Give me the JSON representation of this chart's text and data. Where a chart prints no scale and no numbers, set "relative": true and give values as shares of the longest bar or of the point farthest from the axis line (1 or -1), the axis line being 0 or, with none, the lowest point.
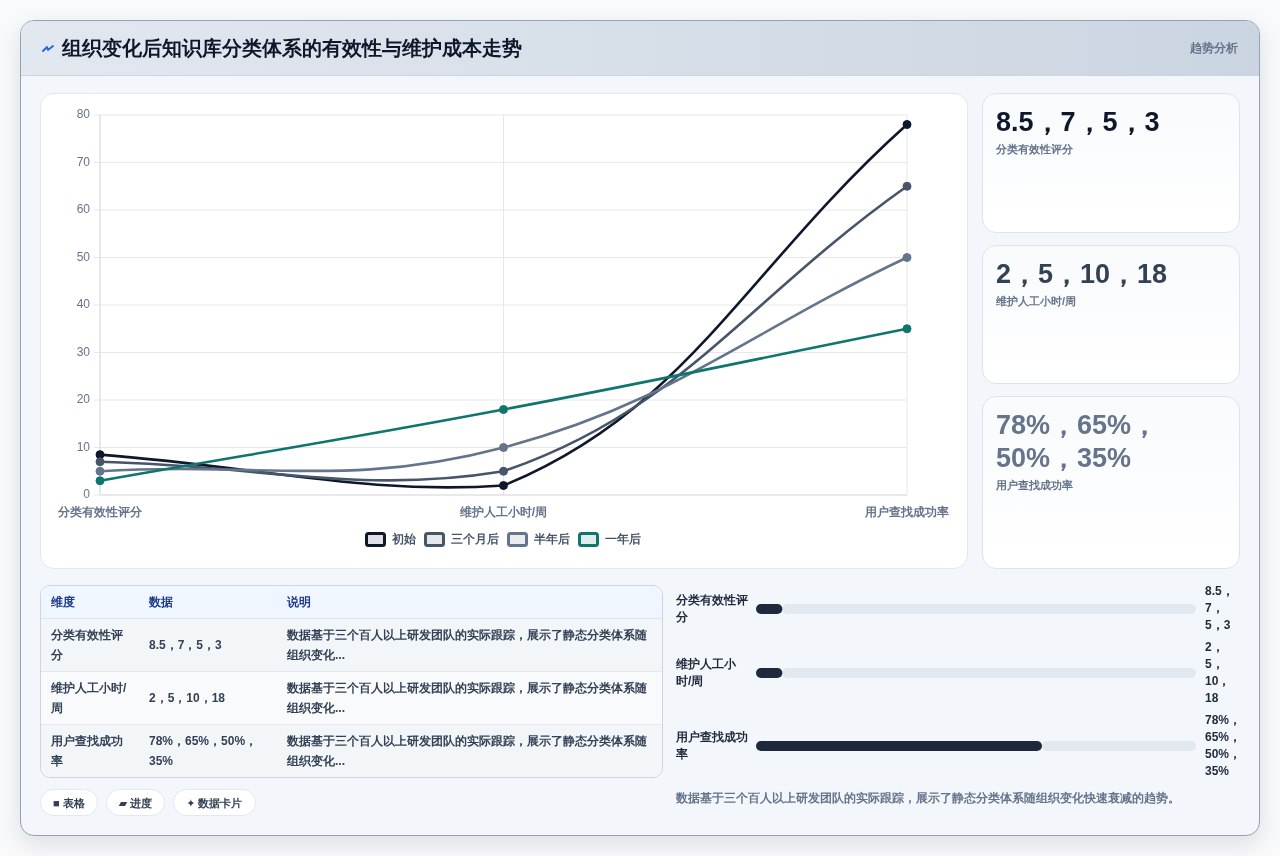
{
  "chart_data": [
    {
      "type": "other",
      "title": "组织变化后知识库分类体系的有效性与维护成本走势",
      "subtitle": "趋势分析"
    },
    {
      "type": "line",
      "categories": [
        "分类有效性评分",
        "维护人工小时/周",
        "用户查找成功率"
      ],
      "series": [
        {
          "name": "初始",
          "color": "#0f172a",
          "values": [
            8.5,
            2,
            78
          ]
        },
        {
          "name": "三个月后",
          "color": "#475569",
          "values": [
            7,
            5,
            65
          ]
        },
        {
          "name": "半年后",
          "color": "#64748b",
          "values": [
            5,
            10,
            50
          ]
        },
        {
          "name": "一年后",
          "color": "#0f766e",
          "values": [
            3,
            18,
            35
          ]
        }
      ],
      "ylim": [
        0,
        80
      ],
      "yticks": [
        0,
        10,
        20,
        30,
        40,
        50,
        60,
        70,
        80
      ],
      "grid": true,
      "legend": "bottom",
      "marker": "circle",
      "line_style": "solid"
    },
    {
      "type": "other",
      "categories": [
        "分类有效性评分",
        "维护人工小时/周",
        "用户查找成功率"
      ],
      "value_labels": [
        "8.5，7，5，3",
        "2，5，10，18",
        "78%，65%，50%，35%"
      ]
    },
    {
      "type": "other",
      "categories": [
        "维度",
        "数据",
        "说明"
      ],
      "cell_labels": [
        [
          "分类有效性评分",
          "8.5，7，5，3",
          "数据基于三个百人以上研发团队的实际跟踪，展示了静态分类体系随组织变化..."
        ],
        [
          "维护人工小时/周",
          "2，5，10，18",
          "数据基于三个百人以上研发团队的实际跟踪，展示了静态分类体系随组织变化..."
        ],
        [
          "用户查找成功率",
          "78%，65%，50%，35%",
          "数据基于三个百人以上研发团队的实际跟踪，展示了静态分类体系随组织变化..."
        ]
      ],
      "annotations": [
        "■ 表格",
        "▰ 进度",
        "✦ 数据卡片"
      ]
    },
    {
      "type": "bar",
      "orientation": "horizontal",
      "stacked": true,
      "relative": true,
      "categories": [
        "分类有效性评分",
        "维护人工小时/周",
        "用户查找成功率"
      ],
      "series": [
        {
          "color": "#1e293b",
          "values": [
            0.06,
            0.06,
            0.65
          ]
        },
        {
          "color": "#e2e8f0",
          "values": [
            0.94,
            0.94,
            0.35
          ]
        }
      ],
      "annotations": [
        "8.5，7，5，3",
        "2，5，10，18",
        "78%，65%，50%，35%"
      ]
    },
    {
      "type": "other",
      "annotations": [
        "数据基于三个百人以上研发团队的实际跟踪，展示了静态分类体系随组织变化快速衰减的趋势。"
      ]
    }
  ]
}
